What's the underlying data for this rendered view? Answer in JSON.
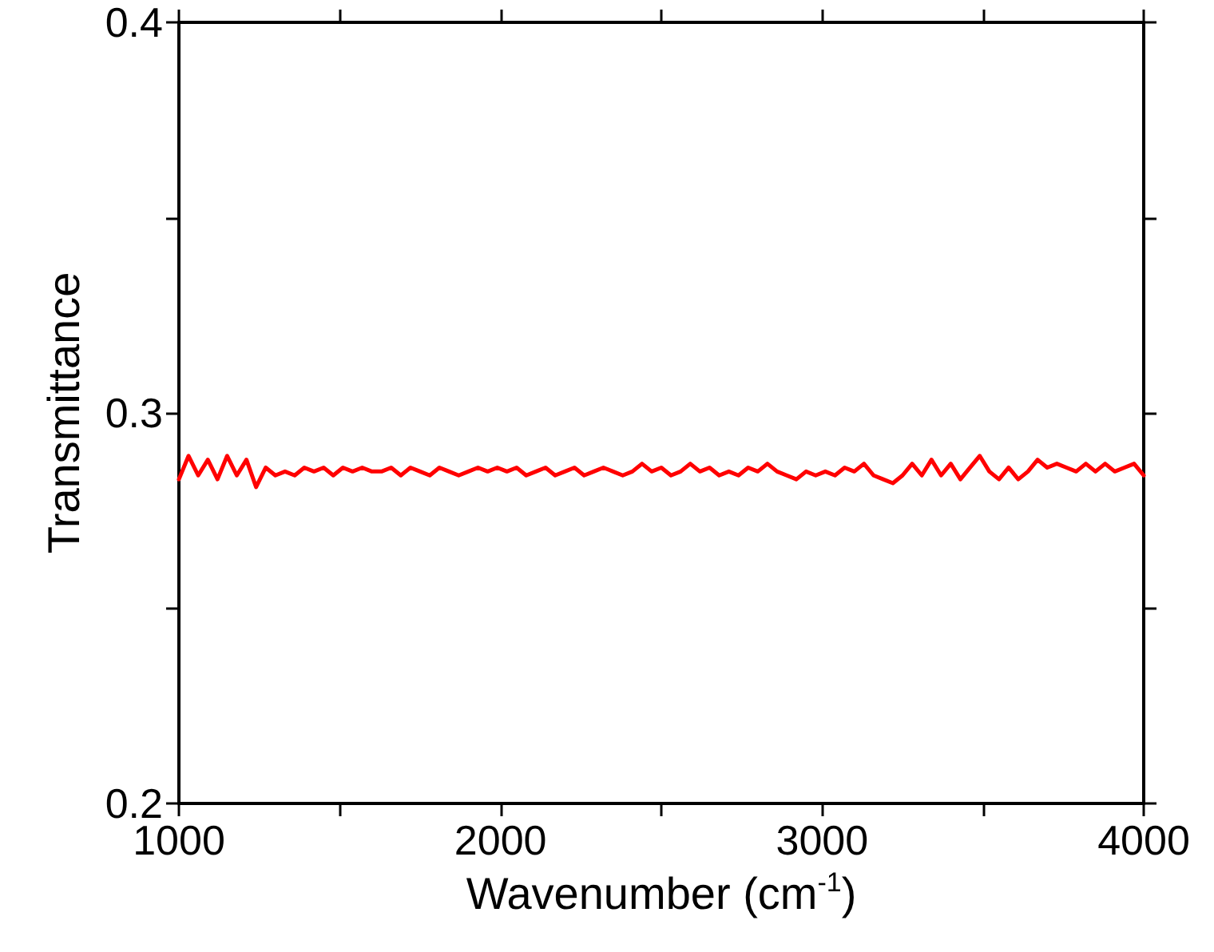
{
  "chart_data": {
    "type": "line",
    "xlabel": "Wavenumber (cm$^{-1}$)",
    "ylabel": "Transmittance",
    "x": [
      1000,
      1030,
      1060,
      1090,
      1120,
      1150,
      1180,
      1210,
      1240,
      1270,
      1300,
      1330,
      1360,
      1390,
      1420,
      1450,
      1480,
      1510,
      1540,
      1570,
      1600,
      1630,
      1660,
      1690,
      1720,
      1750,
      1780,
      1810,
      1840,
      1870,
      1900,
      1930,
      1960,
      1990,
      2020,
      2050,
      2080,
      2110,
      2140,
      2170,
      2200,
      2230,
      2260,
      2290,
      2320,
      2350,
      2380,
      2410,
      2440,
      2470,
      2500,
      2530,
      2560,
      2590,
      2620,
      2650,
      2680,
      2710,
      2740,
      2770,
      2800,
      2830,
      2860,
      2890,
      2920,
      2950,
      2980,
      3010,
      3040,
      3070,
      3100,
      3130,
      3160,
      3190,
      3220,
      3250,
      3280,
      3310,
      3340,
      3370,
      3400,
      3430,
      3460,
      3490,
      3520,
      3550,
      3580,
      3610,
      3640,
      3670,
      3700,
      3730,
      3760,
      3790,
      3820,
      3850,
      3880,
      3910,
      3940,
      3970,
      4000
    ],
    "series": [
      {
        "color": "#ff0000",
        "values": [
          0.283,
          0.289,
          0.284,
          0.288,
          0.283,
          0.289,
          0.284,
          0.288,
          0.281,
          0.286,
          0.284,
          0.285,
          0.284,
          0.286,
          0.285,
          0.286,
          0.284,
          0.286,
          0.285,
          0.286,
          0.285,
          0.285,
          0.286,
          0.284,
          0.286,
          0.285,
          0.284,
          0.286,
          0.285,
          0.284,
          0.285,
          0.286,
          0.285,
          0.286,
          0.285,
          0.286,
          0.284,
          0.285,
          0.286,
          0.284,
          0.285,
          0.286,
          0.284,
          0.285,
          0.286,
          0.285,
          0.284,
          0.285,
          0.287,
          0.285,
          0.286,
          0.284,
          0.285,
          0.287,
          0.285,
          0.286,
          0.284,
          0.285,
          0.284,
          0.286,
          0.285,
          0.287,
          0.285,
          0.284,
          0.283,
          0.285,
          0.284,
          0.285,
          0.284,
          0.286,
          0.285,
          0.287,
          0.284,
          0.283,
          0.282,
          0.284,
          0.287,
          0.284,
          0.288,
          0.284,
          0.287,
          0.283,
          0.286,
          0.289,
          0.285,
          0.283,
          0.286,
          0.283,
          0.285,
          0.288,
          0.286,
          0.287,
          0.286,
          0.285,
          0.287,
          0.285,
          0.287,
          0.285,
          0.286,
          0.287,
          0.284
        ]
      }
    ],
    "xlim": [
      1000,
      4000
    ],
    "xticks": [
      1000,
      {
        "value": 1500,
        "label": null
      },
      2000,
      {
        "value": 2500,
        "label": null
      },
      3000,
      {
        "value": 3500,
        "label": null
      },
      4000
    ],
    "ylim": [
      0.2,
      0.4
    ],
    "yticks": [
      0.2,
      {
        "value": 0.25,
        "label": null
      },
      0.3,
      {
        "value": 0.35,
        "label": null
      },
      0.4
    ],
    "grid": false,
    "line_style": "solid"
  }
}
